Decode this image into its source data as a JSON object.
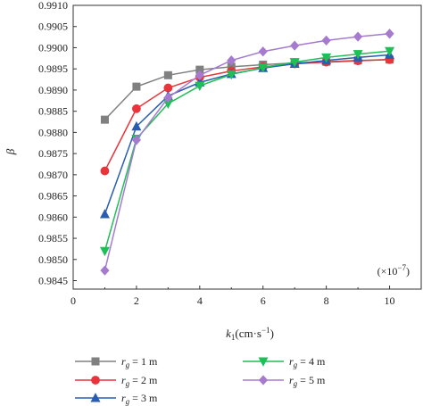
{
  "chart_data": {
    "type": "line",
    "x": [
      1,
      2,
      3,
      4,
      5,
      6,
      7,
      8,
      9,
      10
    ],
    "xlim": [
      0,
      11
    ],
    "ylim": [
      0.9843,
      0.991
    ],
    "xticks": [
      "0",
      "2",
      "4",
      "6",
      "8",
      "10"
    ],
    "yticks": [
      "0.9845",
      "0.9850",
      "0.9855",
      "0.9860",
      "0.9865",
      "0.9870",
      "0.9875",
      "0.9880",
      "0.9885",
      "0.9890",
      "0.9895",
      "0.9900",
      "0.9905",
      "0.9910"
    ],
    "xlabel_main": "k",
    "xlabel_sub": "1",
    "xlabel_units": "(cm·s",
    "xlabel_exp": "−1",
    "xlabel_close": ")",
    "ylabel": "β",
    "scale_note": "(×10",
    "scale_note_exp": "−7",
    "scale_note_close": ")",
    "legend_placement": "bottom",
    "series": [
      {
        "name_var": "r",
        "name_sub": "g",
        "name_rest": " = 1 m",
        "color": "#808080",
        "marker": "square",
        "values": [
          0.9883,
          0.98908,
          0.98935,
          0.98948,
          0.98955,
          0.9896,
          0.98964,
          0.98967,
          0.9897,
          0.98972
        ]
      },
      {
        "name_var": "r",
        "name_sub": "g",
        "name_rest": " = 2 m",
        "color": "#e8343a",
        "marker": "circle",
        "values": [
          0.98709,
          0.98856,
          0.98905,
          0.9893,
          0.98945,
          0.98955,
          0.98962,
          0.98966,
          0.98969,
          0.98972
        ]
      },
      {
        "name_var": "r",
        "name_sub": "g",
        "name_rest": " = 3 m",
        "color": "#2a5db0",
        "marker": "triangle-up",
        "values": [
          0.98607,
          0.98814,
          0.98886,
          0.98918,
          0.98938,
          0.98952,
          0.98962,
          0.9897,
          0.98977,
          0.98983
        ]
      },
      {
        "name_var": "r",
        "name_sub": "g",
        "name_rest": " = 4 m",
        "color": "#1fbf57",
        "marker": "triangle-down",
        "values": [
          0.9852,
          0.98785,
          0.98868,
          0.9891,
          0.98937,
          0.98953,
          0.98966,
          0.98977,
          0.98985,
          0.98992
        ]
      },
      {
        "name_var": "r",
        "name_sub": "g",
        "name_rest": " = 5 m",
        "color": "#a67bcf",
        "marker": "diamond",
        "values": [
          0.98474,
          0.98782,
          0.98882,
          0.98935,
          0.9897,
          0.98991,
          0.99005,
          0.99017,
          0.99026,
          0.99033
        ]
      }
    ]
  }
}
